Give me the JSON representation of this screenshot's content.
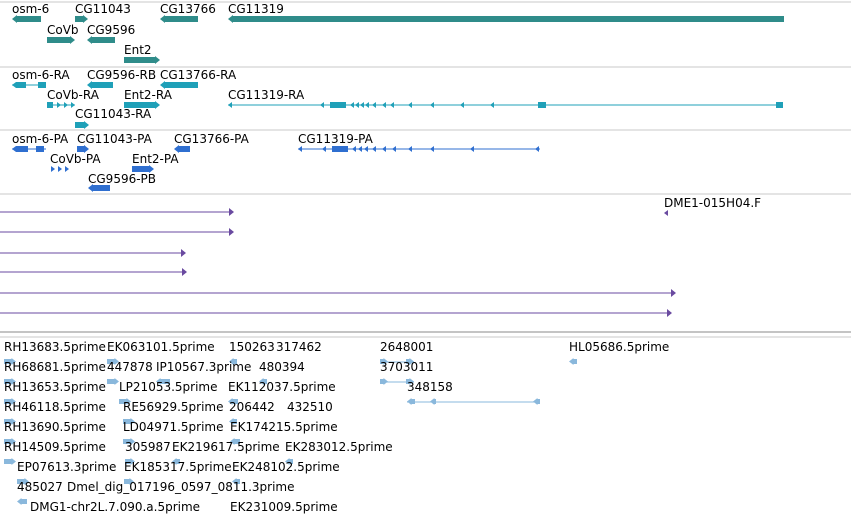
{
  "colors": {
    "gene": "#2f8c8a",
    "transcript": "#1fa0b8",
    "protein": "#2f6fd0",
    "clone": "#6a4aa0",
    "est": "#8ab8dc",
    "divider": "#c8c8c8",
    "strong_divider": "#888888"
  },
  "tracks": {
    "genes": [
      {
        "id": "osm6",
        "label": "osm-6"
      },
      {
        "id": "cg11043",
        "label": "CG11043"
      },
      {
        "id": "cg13766",
        "label": "CG13766"
      },
      {
        "id": "cg11319",
        "label": "CG11319"
      },
      {
        "id": "covb",
        "label": "CoVb"
      },
      {
        "id": "cg9596",
        "label": "CG9596"
      },
      {
        "id": "ent2",
        "label": "Ent2"
      }
    ],
    "transcripts": [
      {
        "id": "osm6ra",
        "label": "osm-6-RA"
      },
      {
        "id": "cg9596rb",
        "label": "CG9596-RB"
      },
      {
        "id": "cg13766ra",
        "label": "CG13766-RA"
      },
      {
        "id": "covbra",
        "label": "CoVb-RA"
      },
      {
        "id": "ent2ra",
        "label": "Ent2-RA"
      },
      {
        "id": "cg11319ra",
        "label": "CG11319-RA"
      },
      {
        "id": "cg11043ra",
        "label": "CG11043-RA"
      }
    ],
    "proteins": [
      {
        "id": "osm6pa",
        "label": "osm-6-PA"
      },
      {
        "id": "cg11043pa",
        "label": "CG11043-PA"
      },
      {
        "id": "cg13766pa",
        "label": "CG13766-PA"
      },
      {
        "id": "cg11319pa",
        "label": "CG11319-PA"
      },
      {
        "id": "covbpa",
        "label": "CoVb-PA"
      },
      {
        "id": "ent2pa",
        "label": "Ent2-PA"
      },
      {
        "id": "cg9596pb",
        "label": "CG9596-PB"
      }
    ],
    "clones": [
      {
        "id": "dme1",
        "label": "DME1-015H04.F"
      }
    ],
    "ests": [
      {
        "id": "e1",
        "label": "RH13683.5prime"
      },
      {
        "id": "e2",
        "label": "EK063101.5prime"
      },
      {
        "id": "e3",
        "label": "150263"
      },
      {
        "id": "e4",
        "label": "317462"
      },
      {
        "id": "e5",
        "label": "2648001"
      },
      {
        "id": "e6",
        "label": "HL05686.5prime"
      },
      {
        "id": "e7",
        "label": "RH68681.5prime"
      },
      {
        "id": "e8",
        "label": "447878"
      },
      {
        "id": "e9",
        "label": "IP10567.3prime"
      },
      {
        "id": "e10",
        "label": "480394"
      },
      {
        "id": "e11",
        "label": "3703011"
      },
      {
        "id": "e12",
        "label": "RH13653.5prime"
      },
      {
        "id": "e13",
        "label": "LP21053.5prime"
      },
      {
        "id": "e14",
        "label": "EK112037.5prime"
      },
      {
        "id": "e15",
        "label": "348158"
      },
      {
        "id": "e16",
        "label": "RH46118.5prime"
      },
      {
        "id": "e17",
        "label": "RE56929.5prime"
      },
      {
        "id": "e18",
        "label": "206442"
      },
      {
        "id": "e19",
        "label": "432510"
      },
      {
        "id": "e20",
        "label": "RH13690.5prime"
      },
      {
        "id": "e21",
        "label": "LD04971.5prime"
      },
      {
        "id": "e22",
        "label": "EK174215.5prime"
      },
      {
        "id": "e23",
        "label": "RH14509.5prime"
      },
      {
        "id": "e24",
        "label": "305987"
      },
      {
        "id": "e25",
        "label": "EK219617.5prime"
      },
      {
        "id": "e26",
        "label": "EK283012.5prime"
      },
      {
        "id": "e27",
        "label": "EP07613.3prime"
      },
      {
        "id": "e28",
        "label": "EK185317.5prime"
      },
      {
        "id": "e29",
        "label": "EK248102.5prime"
      },
      {
        "id": "e30",
        "label": "485027"
      },
      {
        "id": "e31",
        "label": "Dmel_dig_017196_0597_0811.3prime"
      },
      {
        "id": "e32",
        "label": "DMG1-chr2L.7.090.a.5prime"
      },
      {
        "id": "e33",
        "label": "EK231009.5prime"
      }
    ]
  }
}
